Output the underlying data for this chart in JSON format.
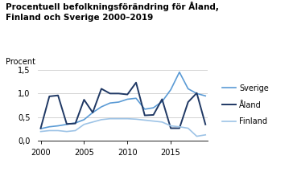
{
  "title": "Procentuell befolkningsförändring för Åland,\nFinland och Sverige 2000–2019",
  "ylabel": "Procent",
  "years": [
    2000,
    2001,
    2002,
    2003,
    2004,
    2005,
    2006,
    2007,
    2008,
    2009,
    2010,
    2011,
    2012,
    2013,
    2014,
    2015,
    2016,
    2017,
    2018,
    2019
  ],
  "sverige": [
    0.26,
    0.3,
    0.32,
    0.35,
    0.38,
    0.45,
    0.6,
    0.72,
    0.8,
    0.82,
    0.88,
    0.9,
    0.67,
    0.7,
    0.83,
    1.08,
    1.45,
    1.1,
    1.0,
    0.95
  ],
  "aland": [
    0.27,
    0.94,
    0.96,
    0.36,
    0.37,
    0.87,
    0.6,
    1.1,
    1.0,
    1.0,
    0.98,
    1.23,
    0.54,
    0.55,
    0.88,
    0.27,
    0.27,
    0.82,
    1.01,
    0.35
  ],
  "finland": [
    0.2,
    0.22,
    0.22,
    0.2,
    0.22,
    0.35,
    0.4,
    0.45,
    0.47,
    0.47,
    0.47,
    0.46,
    0.44,
    0.42,
    0.4,
    0.32,
    0.3,
    0.27,
    0.1,
    0.13
  ],
  "color_sverige": "#5b9bd5",
  "color_aland": "#1f3864",
  "color_finland": "#9dc3e6",
  "xlim": [
    2000,
    2019
  ],
  "ylim": [
    0.0,
    1.5
  ],
  "yticks": [
    0.0,
    0.5,
    1.0,
    1.5
  ],
  "ytick_labels": [
    "0,0",
    "0,5",
    "1,0",
    "1,5"
  ],
  "xticks": [
    2000,
    2005,
    2010,
    2015
  ],
  "legend_labels": [
    "Sverige",
    "Åland",
    "Finland"
  ],
  "title_fontsize": 7.5,
  "label_fontsize": 7.0,
  "tick_fontsize": 7.0,
  "legend_fontsize": 7.0
}
